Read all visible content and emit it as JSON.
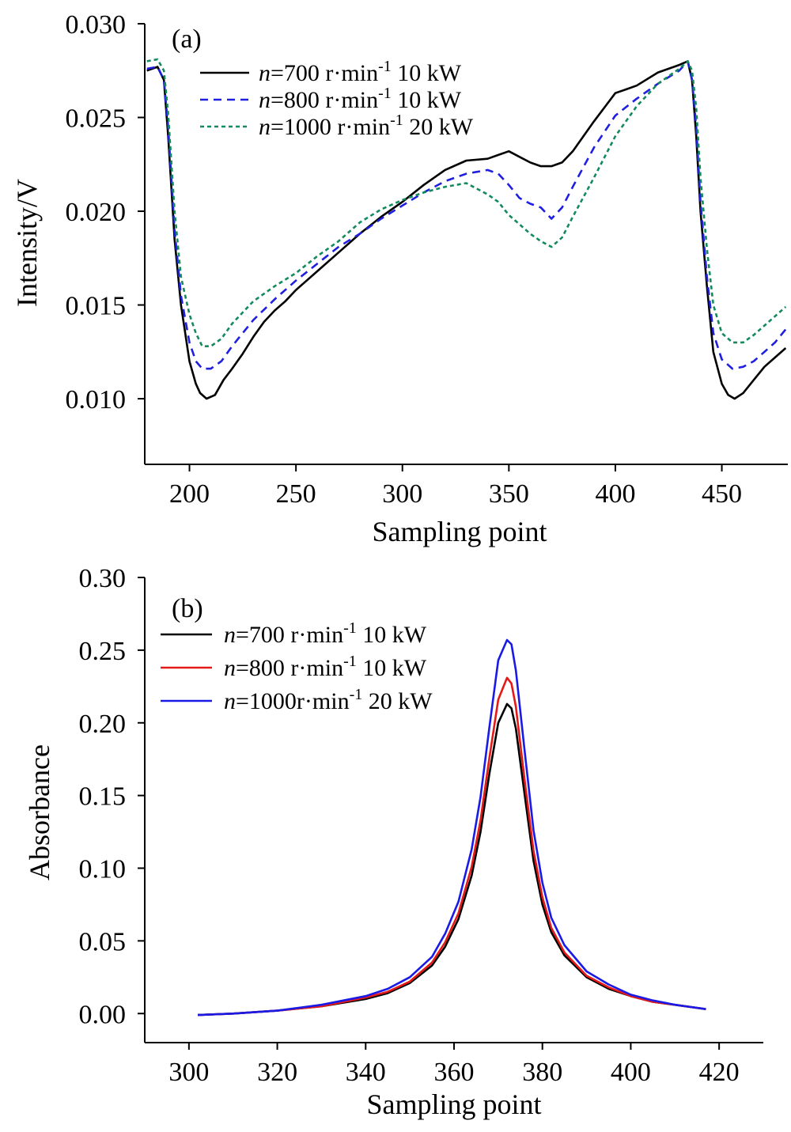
{
  "chart_data": [
    {
      "type": "line",
      "panel_label": "(a)",
      "xlabel": "Sampling point",
      "ylabel": "Intensity/V",
      "xlim": [
        179,
        481
      ],
      "ylim": [
        0.0065,
        0.03
      ],
      "x_ticks": [
        200,
        250,
        300,
        350,
        400,
        450
      ],
      "y_ticks": [
        0.01,
        0.015,
        0.02,
        0.025,
        0.03
      ],
      "x_tick_labels": [
        "200",
        "250",
        "300",
        "350",
        "400",
        "450"
      ],
      "y_tick_labels": [
        "0.010",
        "0.015",
        "0.020",
        "0.025",
        "0.030"
      ],
      "legend_position": "top-left",
      "series": [
        {
          "name": "n=700 r·min-1 10 kW",
          "legend": {
            "italic": "n",
            "pre": "=700 r·min",
            "sup": "-1",
            "post": " 10 kW"
          },
          "color": "#000000",
          "dash": "solid",
          "x": [
            180,
            185,
            188,
            190,
            193,
            196,
            200,
            203,
            205,
            208,
            212,
            216,
            220,
            225,
            230,
            235,
            240,
            245,
            250,
            260,
            270,
            280,
            290,
            300,
            310,
            320,
            330,
            340,
            345,
            350,
            355,
            360,
            365,
            370,
            375,
            380,
            390,
            400,
            405,
            410,
            420,
            430,
            434,
            436,
            438,
            440,
            443,
            446,
            450,
            453,
            456,
            460,
            465,
            470,
            475,
            480
          ],
          "y": [
            0.0275,
            0.0277,
            0.027,
            0.024,
            0.0185,
            0.015,
            0.012,
            0.0108,
            0.0103,
            0.01,
            0.0102,
            0.011,
            0.0116,
            0.0124,
            0.0133,
            0.0141,
            0.0147,
            0.0152,
            0.0158,
            0.0168,
            0.0178,
            0.0188,
            0.0197,
            0.0205,
            0.0214,
            0.0222,
            0.0227,
            0.0228,
            0.023,
            0.0232,
            0.0229,
            0.0226,
            0.0224,
            0.0224,
            0.0226,
            0.0232,
            0.0248,
            0.0263,
            0.0265,
            0.0267,
            0.0274,
            0.0278,
            0.028,
            0.027,
            0.024,
            0.02,
            0.016,
            0.0125,
            0.0108,
            0.0102,
            0.01,
            0.0103,
            0.011,
            0.0117,
            0.0122,
            0.0127
          ]
        },
        {
          "name": "n=800 r·min-1 10 kW",
          "legend": {
            "italic": "n",
            "pre": "=800 r·min",
            "sup": "-1",
            "post": " 10 kW"
          },
          "color": "#1f1fe0",
          "dash": "10,7",
          "x": [
            180,
            185,
            188,
            190,
            193,
            196,
            200,
            203,
            206,
            210,
            215,
            220,
            225,
            230,
            240,
            250,
            260,
            270,
            280,
            290,
            300,
            310,
            320,
            330,
            340,
            345,
            350,
            355,
            360,
            365,
            370,
            375,
            380,
            390,
            400,
            410,
            420,
            430,
            434,
            436,
            438,
            440,
            443,
            446,
            450,
            455,
            460,
            465,
            470,
            475,
            480
          ],
          "y": [
            0.0276,
            0.0277,
            0.027,
            0.0245,
            0.019,
            0.0155,
            0.013,
            0.012,
            0.0116,
            0.0116,
            0.012,
            0.0128,
            0.0135,
            0.0142,
            0.0153,
            0.0163,
            0.0172,
            0.0181,
            0.0188,
            0.0196,
            0.0203,
            0.021,
            0.0216,
            0.022,
            0.0222,
            0.022,
            0.0214,
            0.0207,
            0.0204,
            0.0202,
            0.0196,
            0.0202,
            0.0213,
            0.0234,
            0.0251,
            0.026,
            0.0268,
            0.0275,
            0.028,
            0.027,
            0.0245,
            0.0205,
            0.0165,
            0.0135,
            0.0121,
            0.0116,
            0.0117,
            0.012,
            0.0125,
            0.013,
            0.0137
          ]
        },
        {
          "name": "n=1000 r·min-1 20 kW",
          "legend": {
            "italic": "n",
            "pre": "=1000 r·min",
            "sup": "-1",
            "post": " 20 kW"
          },
          "color": "#138a5c",
          "dash": "5,4",
          "x": [
            180,
            185,
            188,
            190,
            193,
            196,
            200,
            203,
            206,
            210,
            215,
            220,
            225,
            230,
            240,
            250,
            260,
            270,
            280,
            290,
            300,
            310,
            320,
            330,
            340,
            345,
            350,
            355,
            360,
            365,
            370,
            375,
            380,
            390,
            400,
            410,
            420,
            430,
            434,
            436,
            438,
            440,
            443,
            446,
            450,
            455,
            460,
            465,
            470,
            475,
            480
          ],
          "y": [
            0.028,
            0.0281,
            0.0275,
            0.0252,
            0.02,
            0.0165,
            0.0145,
            0.0135,
            0.0128,
            0.0128,
            0.0132,
            0.014,
            0.0146,
            0.0152,
            0.016,
            0.0167,
            0.0176,
            0.0184,
            0.0194,
            0.0201,
            0.0206,
            0.021,
            0.0213,
            0.0215,
            0.0209,
            0.0205,
            0.0198,
            0.0193,
            0.0188,
            0.0184,
            0.0181,
            0.0186,
            0.0197,
            0.0218,
            0.024,
            0.0256,
            0.0268,
            0.0276,
            0.028,
            0.0275,
            0.0255,
            0.0218,
            0.018,
            0.015,
            0.0135,
            0.013,
            0.013,
            0.0134,
            0.0139,
            0.0144,
            0.0149
          ]
        }
      ]
    },
    {
      "type": "line",
      "panel_label": "(b)",
      "xlabel": "Sampling point",
      "ylabel": "Absorbance",
      "xlim": [
        290,
        430
      ],
      "ylim": [
        -0.02,
        0.3
      ],
      "x_ticks": [
        300,
        320,
        340,
        360,
        380,
        400,
        420
      ],
      "y_ticks": [
        0.0,
        0.05,
        0.1,
        0.15,
        0.2,
        0.25,
        0.3
      ],
      "x_tick_labels": [
        "300",
        "320",
        "340",
        "360",
        "380",
        "400",
        "420"
      ],
      "y_tick_labels": [
        "0.00",
        "0.05",
        "0.10",
        "0.15",
        "0.20",
        "0.25",
        "0.30"
      ],
      "legend_position": "top-left",
      "series": [
        {
          "name": "n=700 r·min-1 10 kW",
          "legend": {
            "italic": "n",
            "pre": "=700 r·min",
            "sup": "-1",
            "post": " 10 kW"
          },
          "color": "#000000",
          "dash": "solid",
          "x": [
            302,
            310,
            320,
            330,
            340,
            345,
            350,
            355,
            358,
            361,
            364,
            366,
            368,
            370,
            372,
            373,
            374,
            376,
            378,
            380,
            382,
            385,
            390,
            395,
            400,
            405,
            410,
            417
          ],
          "y": [
            -0.001,
            0.0,
            0.002,
            0.005,
            0.01,
            0.014,
            0.021,
            0.033,
            0.046,
            0.065,
            0.095,
            0.125,
            0.165,
            0.2,
            0.213,
            0.21,
            0.196,
            0.15,
            0.105,
            0.075,
            0.056,
            0.04,
            0.025,
            0.017,
            0.012,
            0.008,
            0.006,
            0.003
          ]
        },
        {
          "name": "n=800 r·min-1 10 kW",
          "legend": {
            "italic": "n",
            "pre": "=800 r·min",
            "sup": "-1",
            "post": " 10 kW"
          },
          "color": "#e61919",
          "dash": "solid",
          "x": [
            302,
            310,
            320,
            330,
            340,
            345,
            350,
            355,
            358,
            361,
            364,
            366,
            368,
            370,
            372,
            373,
            374,
            376,
            378,
            380,
            382,
            385,
            390,
            395,
            400,
            405,
            410,
            417
          ],
          "y": [
            -0.001,
            0.0,
            0.002,
            0.005,
            0.011,
            0.015,
            0.022,
            0.035,
            0.049,
            0.069,
            0.101,
            0.133,
            0.176,
            0.216,
            0.231,
            0.227,
            0.211,
            0.16,
            0.112,
            0.08,
            0.059,
            0.042,
            0.026,
            0.018,
            0.012,
            0.008,
            0.006,
            0.003
          ]
        },
        {
          "name": "n=1000r·min-1 20 kW",
          "legend": {
            "italic": "n",
            "pre": "=1000r·min",
            "sup": "-1",
            "post": " 20 kW"
          },
          "color": "#1a1ae6",
          "dash": "solid",
          "x": [
            302,
            310,
            320,
            330,
            340,
            345,
            350,
            355,
            358,
            361,
            364,
            366,
            368,
            370,
            372,
            373,
            374,
            376,
            378,
            380,
            382,
            385,
            390,
            395,
            400,
            405,
            410,
            417
          ],
          "y": [
            -0.001,
            0.0,
            0.002,
            0.006,
            0.012,
            0.017,
            0.025,
            0.039,
            0.055,
            0.077,
            0.113,
            0.149,
            0.197,
            0.243,
            0.257,
            0.254,
            0.236,
            0.18,
            0.126,
            0.09,
            0.066,
            0.047,
            0.029,
            0.02,
            0.013,
            0.009,
            0.006,
            0.003
          ]
        }
      ]
    }
  ]
}
